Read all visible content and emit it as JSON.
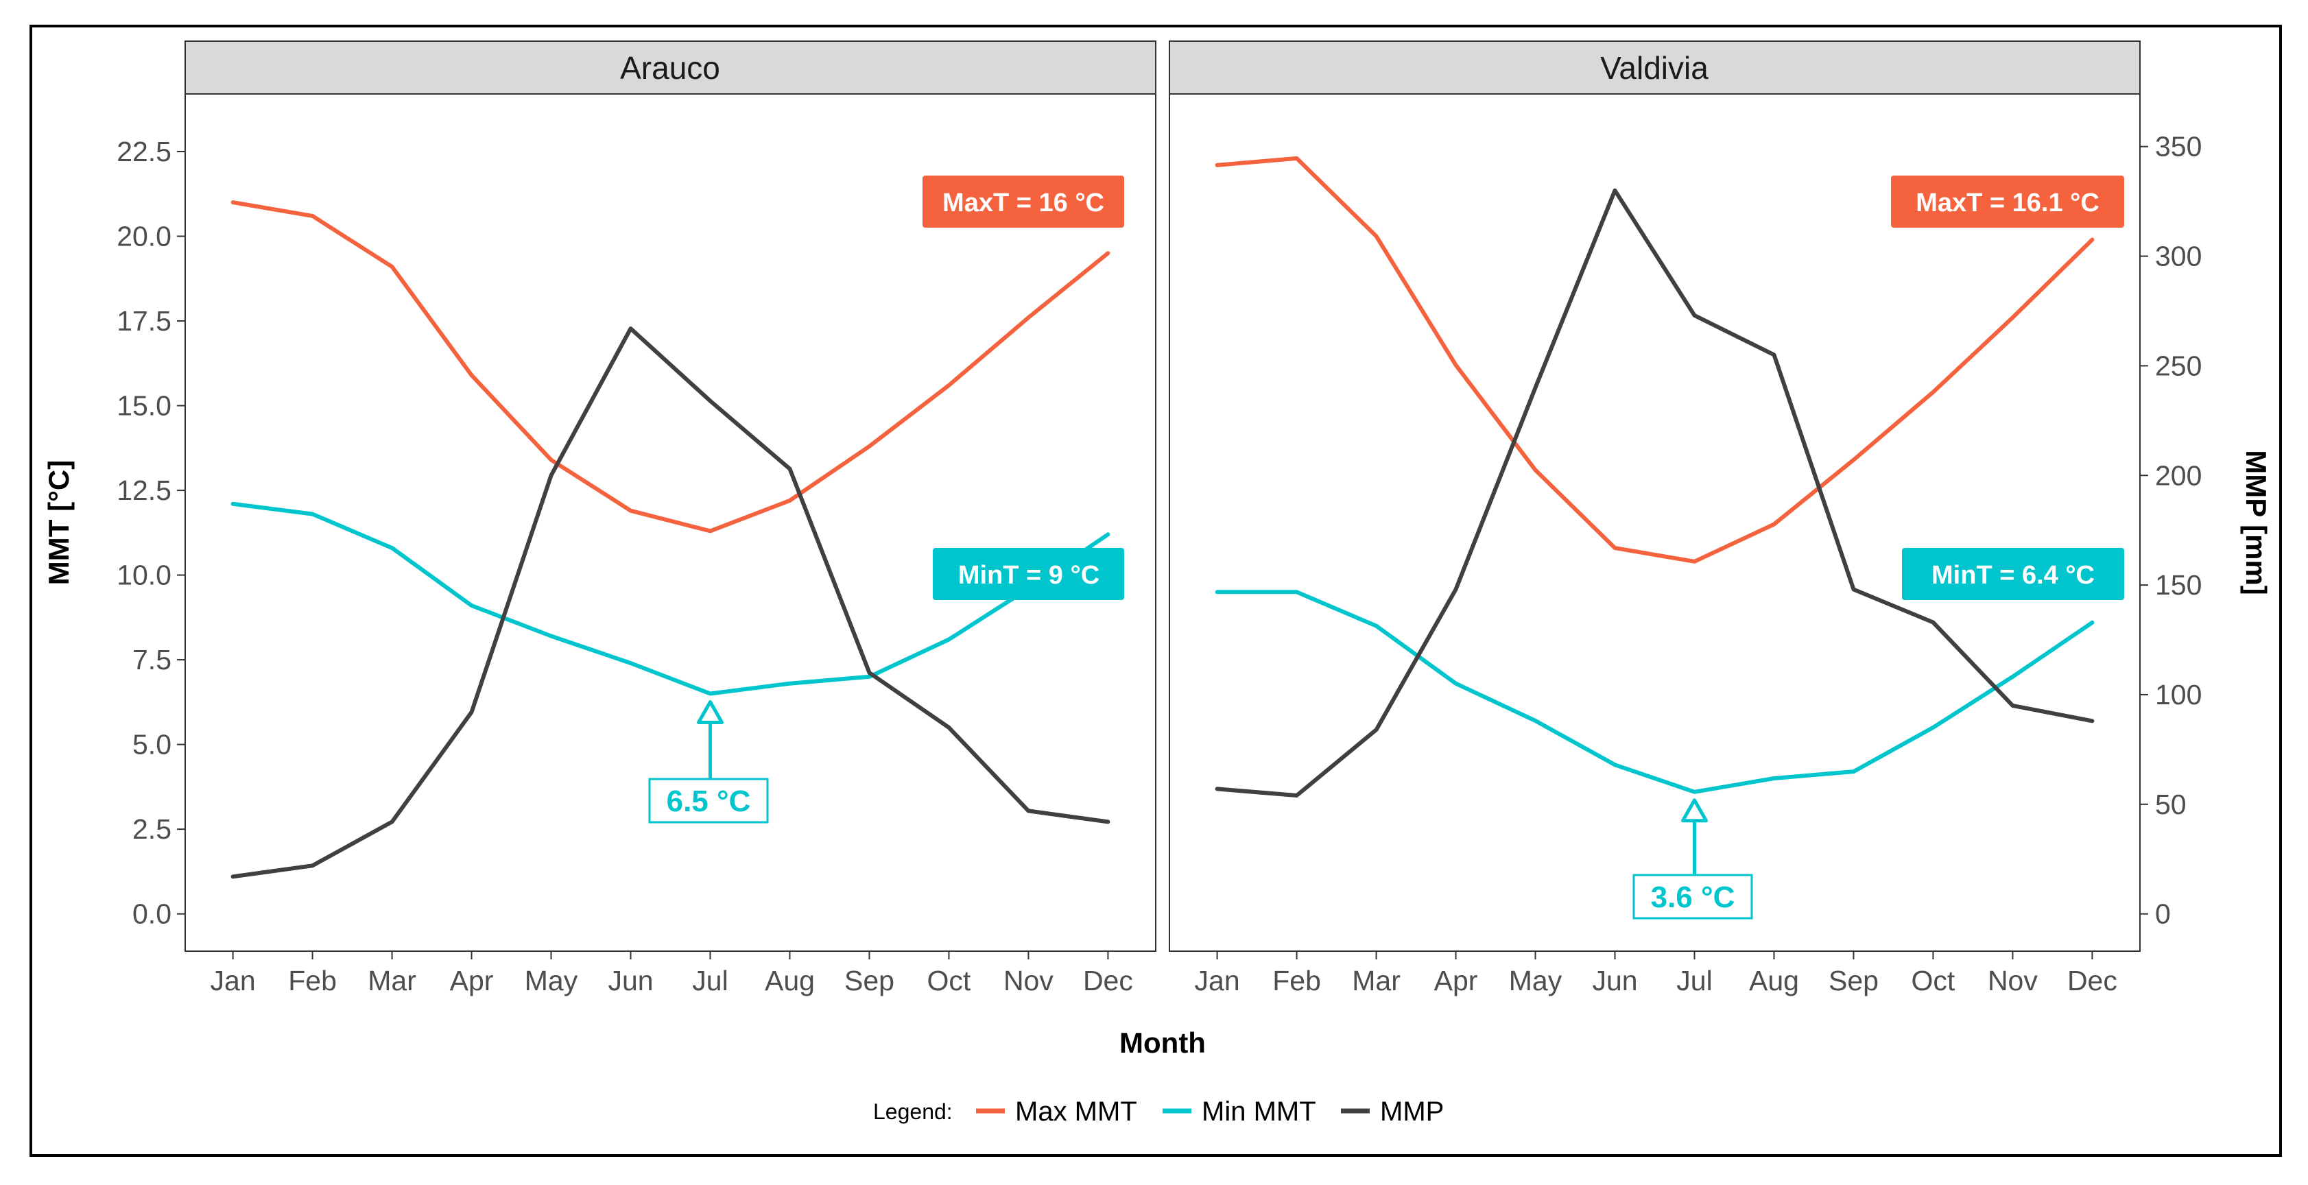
{
  "chart_data": {
    "type": "line",
    "xlabel": "Month",
    "ylabel_left": "MMT [°C]",
    "ylabel_right": "MMP [mm]",
    "categories": [
      "Jan",
      "Feb",
      "Mar",
      "Apr",
      "May",
      "Jun",
      "Jul",
      "Aug",
      "Sep",
      "Oct",
      "Nov",
      "Dec"
    ],
    "y_left": {
      "lim": [
        -1.1,
        24.2
      ],
      "ticks": [
        "0.0",
        "2.5",
        "5.0",
        "7.5",
        "10.0",
        "12.5",
        "15.0",
        "17.5",
        "20.0",
        "22.5"
      ]
    },
    "y_right": {
      "lim": [
        -17,
        374
      ],
      "ticks": [
        "0",
        "50",
        "100",
        "150",
        "200",
        "250",
        "300",
        "350"
      ]
    },
    "colors": {
      "max": "#f4623e",
      "min": "#00c5cd",
      "mmp": "#404040"
    },
    "legend": {
      "title": "Legend:",
      "items": [
        {
          "key": "max",
          "label": "Max MMT"
        },
        {
          "key": "min",
          "label": "Min MMT"
        },
        {
          "key": "mmp",
          "label": "MMP"
        }
      ]
    },
    "panels": [
      {
        "title": "Arauco",
        "series": [
          {
            "key": "max",
            "name": "Max MMT",
            "values": [
              21.0,
              20.6,
              19.1,
              15.9,
              13.4,
              11.9,
              11.3,
              12.2,
              13.8,
              15.6,
              17.6,
              19.5
            ]
          },
          {
            "key": "min",
            "name": "Min MMT",
            "values": [
              12.1,
              11.8,
              10.8,
              9.1,
              8.2,
              7.4,
              6.5,
              6.8,
              7.0,
              8.1,
              9.6,
              11.2
            ]
          },
          {
            "key": "mmp",
            "name": "MMP",
            "axis": "right",
            "values": [
              17,
              22,
              42,
              92,
              200,
              267,
              234,
              203,
              110,
              85,
              47,
              42
            ]
          }
        ],
        "annotations": {
          "max_label": "MaxT = 16 °C",
          "min_label": "MinT = 9 °C",
          "callout_label": "6.5 °C",
          "callout_month": "Jul",
          "callout_value": 6.5
        }
      },
      {
        "title": "Valdivia",
        "series": [
          {
            "key": "max",
            "name": "Max MMT",
            "values": [
              22.1,
              22.3,
              20.0,
              16.2,
              13.1,
              10.8,
              10.4,
              11.5,
              13.4,
              15.4,
              17.6,
              19.9
            ]
          },
          {
            "key": "min",
            "name": "Min MMT",
            "values": [
              9.5,
              9.5,
              8.5,
              6.8,
              5.7,
              4.4,
              3.6,
              4.0,
              4.2,
              5.5,
              7.0,
              8.6
            ]
          },
          {
            "key": "mmp",
            "name": "MMP",
            "axis": "right",
            "values": [
              57,
              54,
              84,
              148,
              240,
              330,
              273,
              255,
              148,
              133,
              95,
              88
            ]
          }
        ],
        "annotations": {
          "max_label": "MaxT = 16.1 °C",
          "min_label": "MinT = 6.4 °C",
          "callout_label": "3.6 °C",
          "callout_month": "Jul",
          "callout_value": 3.6
        }
      }
    ]
  }
}
